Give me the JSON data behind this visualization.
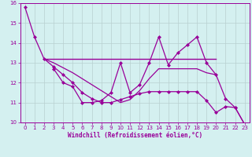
{
  "x": [
    0,
    1,
    2,
    3,
    4,
    5,
    6,
    7,
    8,
    9,
    10,
    11,
    12,
    13,
    14,
    15,
    16,
    17,
    18,
    19,
    20,
    21,
    22,
    23
  ],
  "line_smooth": [
    15.8,
    14.3,
    13.2,
    12.8,
    12.4,
    12.0,
    11.5,
    11.2,
    11.0,
    11.0,
    11.15,
    11.3,
    11.45,
    11.55,
    11.55,
    11.55,
    11.55,
    11.55,
    11.55,
    11.1,
    10.5,
    10.8,
    10.75,
    9.9
  ],
  "line_horiz": [
    null,
    null,
    13.2,
    13.2,
    13.2,
    13.2,
    13.2,
    13.2,
    13.2,
    13.2,
    13.2,
    13.2,
    13.2,
    13.2,
    13.2,
    13.2,
    13.2,
    13.2,
    13.2,
    13.2,
    13.2,
    null,
    null,
    null
  ],
  "line_zigzag": [
    null,
    null,
    null,
    12.7,
    12.0,
    11.8,
    11.0,
    11.0,
    11.1,
    11.5,
    13.0,
    11.5,
    11.9,
    13.0,
    14.3,
    12.9,
    13.5,
    13.9,
    14.3,
    13.0,
    12.4,
    11.2,
    10.75,
    9.9
  ],
  "line_diag": [
    null,
    null,
    13.2,
    13.0,
    12.75,
    12.5,
    12.2,
    11.9,
    11.6,
    11.3,
    11.0,
    11.15,
    11.6,
    12.2,
    12.7,
    12.7,
    12.7,
    12.7,
    12.7,
    12.5,
    12.4,
    null,
    null,
    null
  ],
  "color": "#990099",
  "bg_color": "#d4f0f0",
  "grid_color": "#b8d0d0",
  "xlabel": "Windchill (Refroidissement éolien,°C)",
  "ylim": [
    10,
    16
  ],
  "xlim": [
    -0.5,
    23.5
  ],
  "yticks": [
    10,
    11,
    12,
    13,
    14,
    15,
    16
  ],
  "xticks": [
    0,
    1,
    2,
    3,
    4,
    5,
    6,
    7,
    8,
    9,
    10,
    11,
    12,
    13,
    14,
    15,
    16,
    17,
    18,
    19,
    20,
    21,
    22,
    23
  ]
}
